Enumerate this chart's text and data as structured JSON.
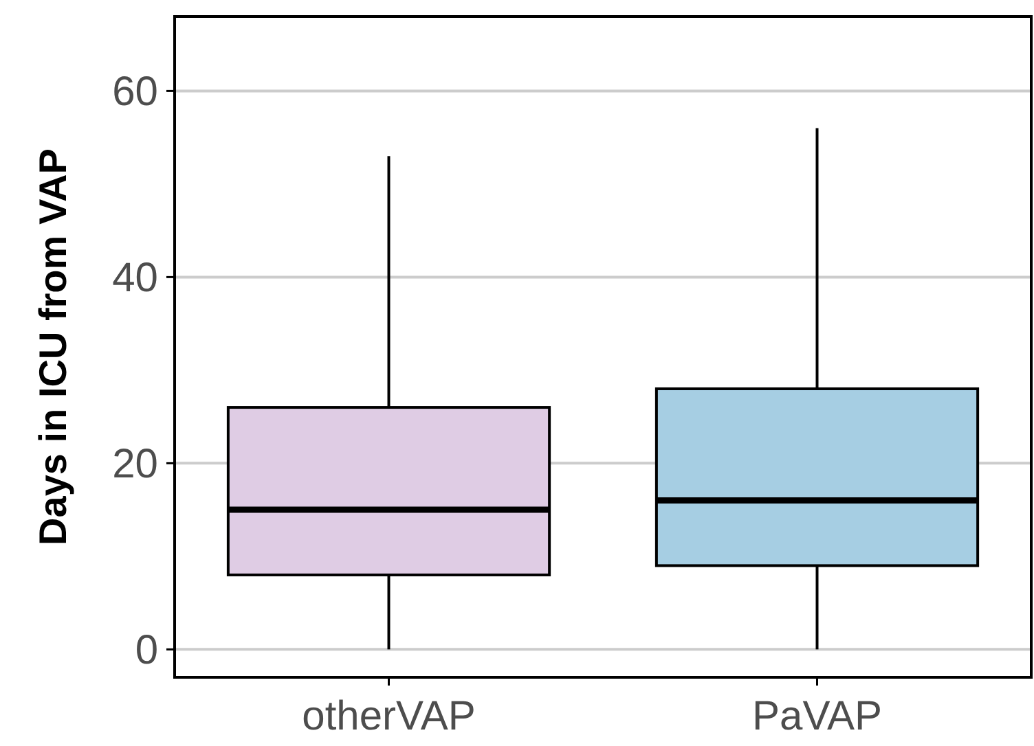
{
  "chart_data": {
    "type": "box",
    "ylabel": "Days in ICU from VAP",
    "categories": [
      "otherVAP",
      "PaVAP"
    ],
    "colors": [
      "#dfcce4",
      "#a6cee3"
    ],
    "boxes": [
      {
        "low": 0,
        "q1": 8,
        "median": 15,
        "q3": 26,
        "high": 53
      },
      {
        "low": 0,
        "q1": 9,
        "median": 16,
        "q3": 28,
        "high": 56
      }
    ],
    "ylim": [
      -3,
      68
    ],
    "yticks": [
      0,
      20,
      40,
      60
    ],
    "grid": "y"
  }
}
